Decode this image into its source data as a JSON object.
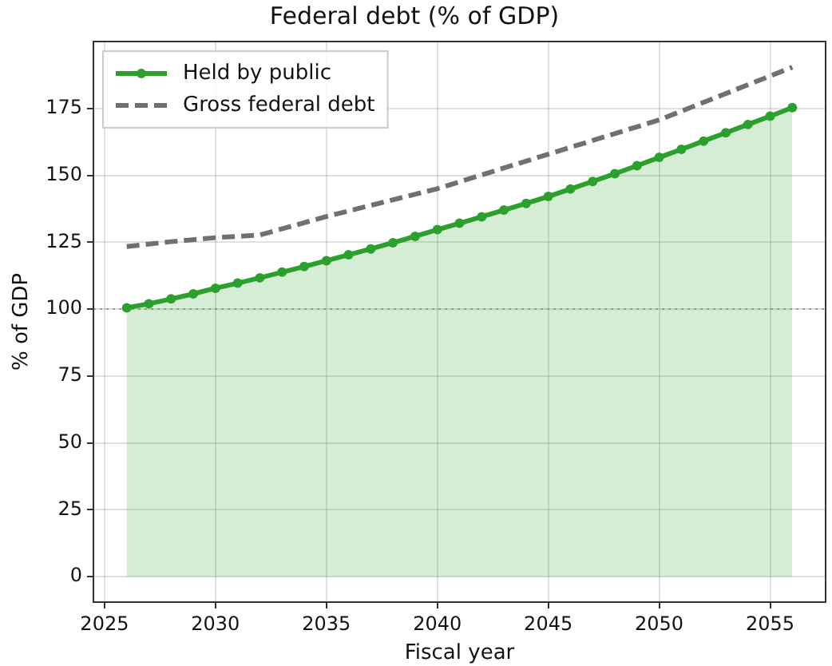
{
  "chart_data": {
    "type": "line",
    "title": "Federal debt (% of GDP)",
    "xlabel": "Fiscal year",
    "ylabel": "% of GDP",
    "x": [
      2026,
      2027,
      2028,
      2029,
      2030,
      2031,
      2032,
      2033,
      2034,
      2035,
      2036,
      2037,
      2038,
      2039,
      2040,
      2041,
      2042,
      2043,
      2044,
      2045,
      2046,
      2047,
      2048,
      2049,
      2050,
      2051,
      2052,
      2053,
      2054,
      2055,
      2056
    ],
    "series": [
      {
        "name": "Held by public",
        "type": "area",
        "color": "#2ca02c",
        "marker": "circle",
        "line_style": "solid",
        "values": [
          100.5,
          102,
          103.8,
          105.7,
          107.8,
          109.7,
          111.7,
          113.8,
          115.9,
          118.1,
          120.3,
          122.5,
          124.8,
          127.2,
          129.7,
          132.1,
          134.5,
          137,
          139.5,
          142.1,
          144.9,
          147.7,
          150.6,
          153.6,
          156.7,
          159.7,
          162.8,
          165.9,
          169,
          172.1,
          175.3
        ]
      },
      {
        "name": "Gross federal debt",
        "color": "#707070",
        "marker": "none",
        "line_style": "dashed",
        "x": [
          2026,
          2028,
          2030,
          2032,
          2035,
          2040,
          2045,
          2050,
          2056
        ],
        "values": [
          123.4,
          125.2,
          126.7,
          127.7,
          134.6,
          145,
          157.9,
          170.7,
          190.4
        ]
      }
    ],
    "xlim": [
      2024.5,
      2057.5
    ],
    "xticks": [
      2025,
      2030,
      2035,
      2040,
      2045,
      2050,
      2055
    ],
    "ylim": [
      -9.5,
      200
    ],
    "yticks": [
      0,
      25,
      50,
      75,
      100,
      125,
      150,
      175
    ],
    "ref_lines": [
      {
        "axis": "y",
        "value": 100,
        "color": "#a0a0a0",
        "line_style": "dotted"
      }
    ],
    "grid": true,
    "legend": "top left"
  }
}
